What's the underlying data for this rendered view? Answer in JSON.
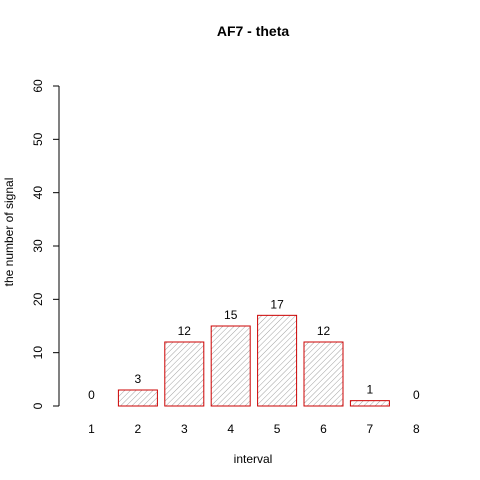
{
  "chart_data": {
    "type": "bar",
    "title": "AF7  -  theta",
    "xlabel": "interval",
    "ylabel": "the number of signal",
    "categories": [
      "1",
      "2",
      "3",
      "4",
      "5",
      "6",
      "7",
      "8"
    ],
    "values": [
      0,
      3,
      12,
      15,
      17,
      12,
      1,
      0
    ],
    "data_labels": [
      "0",
      "3",
      "12",
      "15",
      "17",
      "12",
      "1",
      "0"
    ],
    "ylim": [
      0,
      60
    ],
    "yticks": [
      "0",
      "10",
      "20",
      "30",
      "40",
      "50",
      "60"
    ],
    "grid": false,
    "legend": "none",
    "colors": {
      "bar_border": "#cc0000",
      "hatch": "#8a8a8a",
      "axis": "#000000"
    }
  }
}
